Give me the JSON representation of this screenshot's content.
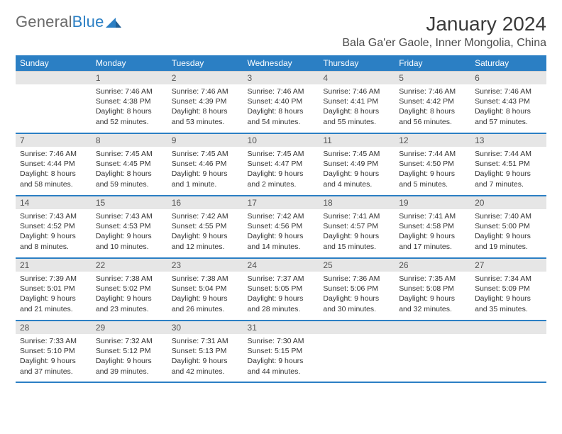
{
  "brand": {
    "name_part1": "General",
    "name_part2": "Blue"
  },
  "title": "January 2024",
  "location": "Bala Ga'er Gaole, Inner Mongolia, China",
  "colors": {
    "accent": "#2b7fc4",
    "header_text": "#ffffff",
    "daynum_bg": "#e6e6e6",
    "body_text": "#333333",
    "muted_text": "#555555",
    "background": "#ffffff"
  },
  "typography": {
    "title_fontsize": 28,
    "location_fontsize": 16,
    "weekday_fontsize": 12,
    "cell_fontsize": 10.5
  },
  "weekdays": [
    "Sunday",
    "Monday",
    "Tuesday",
    "Wednesday",
    "Thursday",
    "Friday",
    "Saturday"
  ],
  "weeks": [
    [
      {
        "n": "",
        "sunrise": "",
        "sunset": "",
        "daylight": ""
      },
      {
        "n": "1",
        "sunrise": "Sunrise: 7:46 AM",
        "sunset": "Sunset: 4:38 PM",
        "daylight": "Daylight: 8 hours and 52 minutes."
      },
      {
        "n": "2",
        "sunrise": "Sunrise: 7:46 AM",
        "sunset": "Sunset: 4:39 PM",
        "daylight": "Daylight: 8 hours and 53 minutes."
      },
      {
        "n": "3",
        "sunrise": "Sunrise: 7:46 AM",
        "sunset": "Sunset: 4:40 PM",
        "daylight": "Daylight: 8 hours and 54 minutes."
      },
      {
        "n": "4",
        "sunrise": "Sunrise: 7:46 AM",
        "sunset": "Sunset: 4:41 PM",
        "daylight": "Daylight: 8 hours and 55 minutes."
      },
      {
        "n": "5",
        "sunrise": "Sunrise: 7:46 AM",
        "sunset": "Sunset: 4:42 PM",
        "daylight": "Daylight: 8 hours and 56 minutes."
      },
      {
        "n": "6",
        "sunrise": "Sunrise: 7:46 AM",
        "sunset": "Sunset: 4:43 PM",
        "daylight": "Daylight: 8 hours and 57 minutes."
      }
    ],
    [
      {
        "n": "7",
        "sunrise": "Sunrise: 7:46 AM",
        "sunset": "Sunset: 4:44 PM",
        "daylight": "Daylight: 8 hours and 58 minutes."
      },
      {
        "n": "8",
        "sunrise": "Sunrise: 7:45 AM",
        "sunset": "Sunset: 4:45 PM",
        "daylight": "Daylight: 8 hours and 59 minutes."
      },
      {
        "n": "9",
        "sunrise": "Sunrise: 7:45 AM",
        "sunset": "Sunset: 4:46 PM",
        "daylight": "Daylight: 9 hours and 1 minute."
      },
      {
        "n": "10",
        "sunrise": "Sunrise: 7:45 AM",
        "sunset": "Sunset: 4:47 PM",
        "daylight": "Daylight: 9 hours and 2 minutes."
      },
      {
        "n": "11",
        "sunrise": "Sunrise: 7:45 AM",
        "sunset": "Sunset: 4:49 PM",
        "daylight": "Daylight: 9 hours and 4 minutes."
      },
      {
        "n": "12",
        "sunrise": "Sunrise: 7:44 AM",
        "sunset": "Sunset: 4:50 PM",
        "daylight": "Daylight: 9 hours and 5 minutes."
      },
      {
        "n": "13",
        "sunrise": "Sunrise: 7:44 AM",
        "sunset": "Sunset: 4:51 PM",
        "daylight": "Daylight: 9 hours and 7 minutes."
      }
    ],
    [
      {
        "n": "14",
        "sunrise": "Sunrise: 7:43 AM",
        "sunset": "Sunset: 4:52 PM",
        "daylight": "Daylight: 9 hours and 8 minutes."
      },
      {
        "n": "15",
        "sunrise": "Sunrise: 7:43 AM",
        "sunset": "Sunset: 4:53 PM",
        "daylight": "Daylight: 9 hours and 10 minutes."
      },
      {
        "n": "16",
        "sunrise": "Sunrise: 7:42 AM",
        "sunset": "Sunset: 4:55 PM",
        "daylight": "Daylight: 9 hours and 12 minutes."
      },
      {
        "n": "17",
        "sunrise": "Sunrise: 7:42 AM",
        "sunset": "Sunset: 4:56 PM",
        "daylight": "Daylight: 9 hours and 14 minutes."
      },
      {
        "n": "18",
        "sunrise": "Sunrise: 7:41 AM",
        "sunset": "Sunset: 4:57 PM",
        "daylight": "Daylight: 9 hours and 15 minutes."
      },
      {
        "n": "19",
        "sunrise": "Sunrise: 7:41 AM",
        "sunset": "Sunset: 4:58 PM",
        "daylight": "Daylight: 9 hours and 17 minutes."
      },
      {
        "n": "20",
        "sunrise": "Sunrise: 7:40 AM",
        "sunset": "Sunset: 5:00 PM",
        "daylight": "Daylight: 9 hours and 19 minutes."
      }
    ],
    [
      {
        "n": "21",
        "sunrise": "Sunrise: 7:39 AM",
        "sunset": "Sunset: 5:01 PM",
        "daylight": "Daylight: 9 hours and 21 minutes."
      },
      {
        "n": "22",
        "sunrise": "Sunrise: 7:38 AM",
        "sunset": "Sunset: 5:02 PM",
        "daylight": "Daylight: 9 hours and 23 minutes."
      },
      {
        "n": "23",
        "sunrise": "Sunrise: 7:38 AM",
        "sunset": "Sunset: 5:04 PM",
        "daylight": "Daylight: 9 hours and 26 minutes."
      },
      {
        "n": "24",
        "sunrise": "Sunrise: 7:37 AM",
        "sunset": "Sunset: 5:05 PM",
        "daylight": "Daylight: 9 hours and 28 minutes."
      },
      {
        "n": "25",
        "sunrise": "Sunrise: 7:36 AM",
        "sunset": "Sunset: 5:06 PM",
        "daylight": "Daylight: 9 hours and 30 minutes."
      },
      {
        "n": "26",
        "sunrise": "Sunrise: 7:35 AM",
        "sunset": "Sunset: 5:08 PM",
        "daylight": "Daylight: 9 hours and 32 minutes."
      },
      {
        "n": "27",
        "sunrise": "Sunrise: 7:34 AM",
        "sunset": "Sunset: 5:09 PM",
        "daylight": "Daylight: 9 hours and 35 minutes."
      }
    ],
    [
      {
        "n": "28",
        "sunrise": "Sunrise: 7:33 AM",
        "sunset": "Sunset: 5:10 PM",
        "daylight": "Daylight: 9 hours and 37 minutes."
      },
      {
        "n": "29",
        "sunrise": "Sunrise: 7:32 AM",
        "sunset": "Sunset: 5:12 PM",
        "daylight": "Daylight: 9 hours and 39 minutes."
      },
      {
        "n": "30",
        "sunrise": "Sunrise: 7:31 AM",
        "sunset": "Sunset: 5:13 PM",
        "daylight": "Daylight: 9 hours and 42 minutes."
      },
      {
        "n": "31",
        "sunrise": "Sunrise: 7:30 AM",
        "sunset": "Sunset: 5:15 PM",
        "daylight": "Daylight: 9 hours and 44 minutes."
      },
      {
        "n": "",
        "sunrise": "",
        "sunset": "",
        "daylight": ""
      },
      {
        "n": "",
        "sunrise": "",
        "sunset": "",
        "daylight": ""
      },
      {
        "n": "",
        "sunrise": "",
        "sunset": "",
        "daylight": ""
      }
    ]
  ]
}
